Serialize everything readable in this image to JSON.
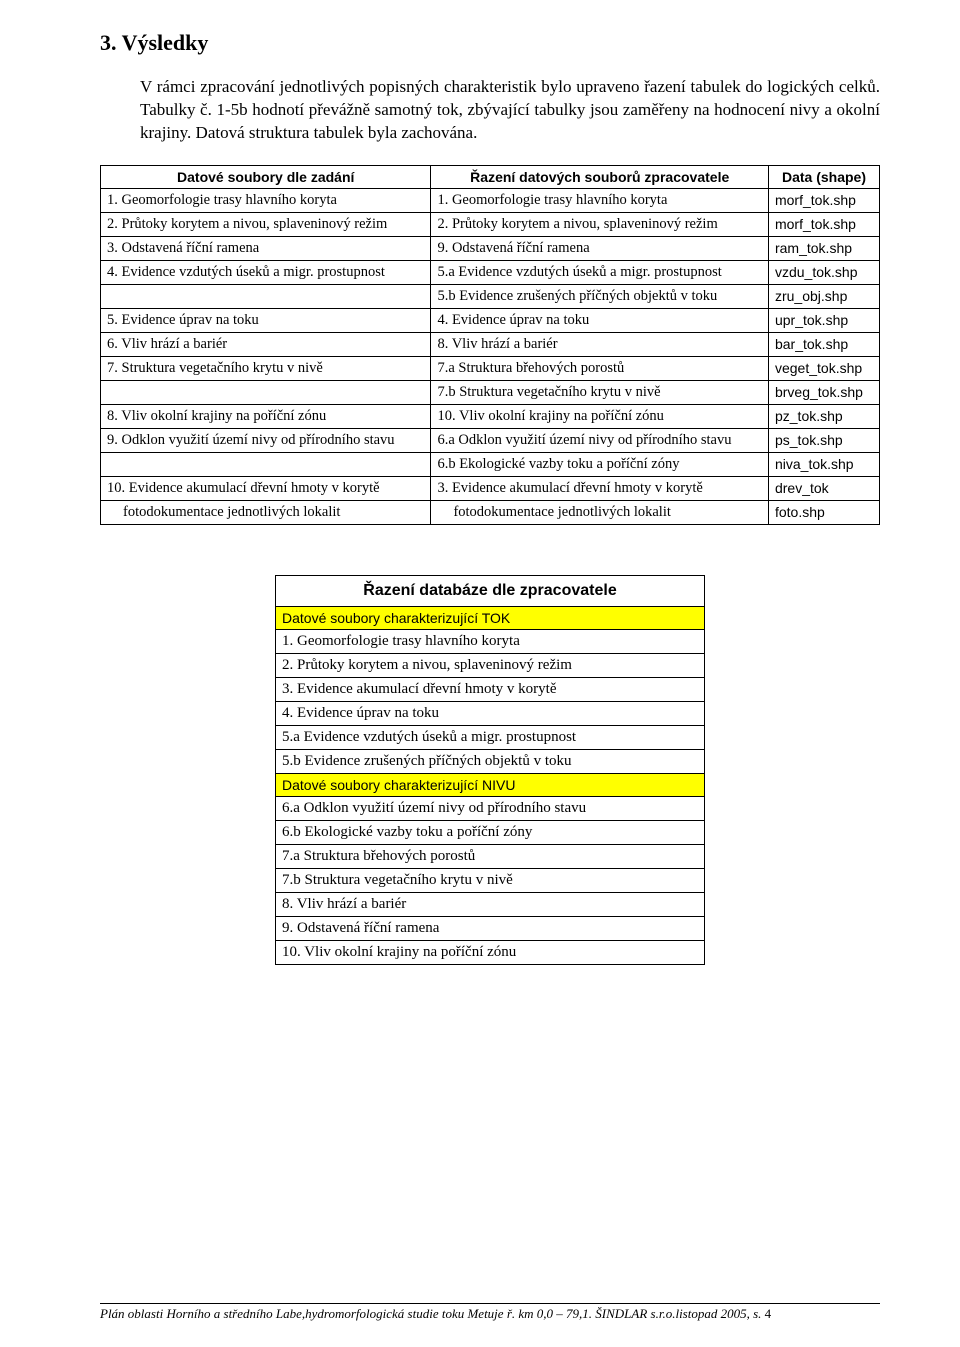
{
  "colors": {
    "background": "#ffffff",
    "text": "#000000",
    "highlight": "#ffff00",
    "border": "#000000"
  },
  "heading": "3. Výsledky",
  "intro": "V rámci  zpracování jednotlivých popisných charakteristik  bylo upraveno řazení tabulek do logických celků. Tabulky č. 1-5b hodnotí převážně samotný tok, zbývající tabulky jsou zaměřeny na hodnocení nivy a okolní krajiny. Datová struktura tabulek byla zachována.",
  "table1": {
    "headers": {
      "c1": "Datové soubory dle zadání",
      "c2": "Řazení datových souborů  zpracovatele",
      "c3": "Data (shape)"
    },
    "rows": [
      {
        "c1": "1. Geomorfologie trasy hlavního koryta",
        "c2": "1. Geomorfologie trasy hlavního koryta",
        "c3": "morf_tok.shp"
      },
      {
        "c1": "2. Průtoky korytem a nivou, splaveninový režim",
        "c2": "2.  Průtoky korytem a nivou, splaveninový režim",
        "c3": "morf_tok.shp"
      },
      {
        "c1": "3. Odstavená říční ramena",
        "c2": "9. Odstavená říční ramena",
        "c3": "ram_tok.shp"
      },
      {
        "c1": "4. Evidence vzdutých úseků a migr. prostupnost",
        "c2": "5.a  Evidence vzdutých úseků a migr. prostupnost",
        "c3": "vzdu_tok.shp"
      },
      {
        "c1": "",
        "c2": "5.b Evidence zrušených příčných objektů v toku",
        "c3": "zru_obj.shp"
      },
      {
        "c1": "5. Evidence úprav na toku",
        "c2": "4. Evidence úprav na toku",
        "c3": "upr_tok.shp"
      },
      {
        "c1": "6. Vliv hrází a bariér",
        "c2": "8. Vliv hrází a bariér",
        "c3": "bar_tok.shp"
      },
      {
        "c1": "7. Struktura vegetačního krytu v nivě",
        "c2": "7.a Struktura břehových porostů",
        "c3": "veget_tok.shp"
      },
      {
        "c1": "",
        "c2": "7.b Struktura vegetačního krytu v nivě",
        "c3": "brveg_tok.shp"
      },
      {
        "c1": "8. Vliv okolní krajiny na poříční zónu",
        "c2": "10. Vliv okolní krajiny na poříční zónu",
        "c3": "pz_tok.shp"
      },
      {
        "c1": "9. Odklon využití území nivy od přírodního stavu",
        "c2": "6.a Odklon využití území nivy od přírodního stavu",
        "c3": "ps_tok.shp"
      },
      {
        "c1": "",
        "c2": "6.b Ekologické vazby toku  a poříční zóny",
        "c3": "niva_tok.shp"
      },
      {
        "c1": "10. Evidence akumulací dřevní hmoty v korytě",
        "c2": "3. Evidence akumulací dřevní hmoty v korytě",
        "c3": "drev_tok"
      },
      {
        "c1": "fotodokumentace jednotlivých lokalit",
        "c2": "fotodokumentace jednotlivých lokalit",
        "c3": "foto.shp",
        "indent": true
      }
    ]
  },
  "table2": {
    "header": "Řazení databáze dle  zpracovatele",
    "rows": [
      {
        "text": "Datové soubory charakterizující TOK",
        "yellow": true
      },
      {
        "text": "1. Geomorfologie trasy hlavního koryta"
      },
      {
        "text": "2.  Průtoky korytem a nivou, splaveninový režim"
      },
      {
        "text": "3. Evidence akumulací dřevní hmoty v korytě"
      },
      {
        "text": "4. Evidence úprav na toku"
      },
      {
        "text": "5.a  Evidence vzdutých úseků a migr. prostupnost"
      },
      {
        "text": "5.b Evidence zrušených příčných objektů v toku"
      },
      {
        "text": "Datové soubory charakterizující NIVU",
        "yellow": true
      },
      {
        "text": "6.a Odklon využití území nivy od přírodního stavu"
      },
      {
        "text": "6.b Ekologické vazby toku  a poříční zóny"
      },
      {
        "text": "7.a Struktura břehových porostů"
      },
      {
        "text": "7.b Struktura vegetačního krytu v nivě"
      },
      {
        "text": "8. Vliv hrází a bariér"
      },
      {
        "text": "9. Odstavená říční ramena"
      },
      {
        "text": "10. Vliv okolní krajiny na poříční zónu"
      }
    ]
  },
  "footer": {
    "text": "Plán oblasti Horního a středního Labe,hydromorfologická studie toku Metuje ř. km 0,0 – 79,1.  ŠINDLAR s.r.o.listopad 2005, s.",
    "page": "4"
  }
}
